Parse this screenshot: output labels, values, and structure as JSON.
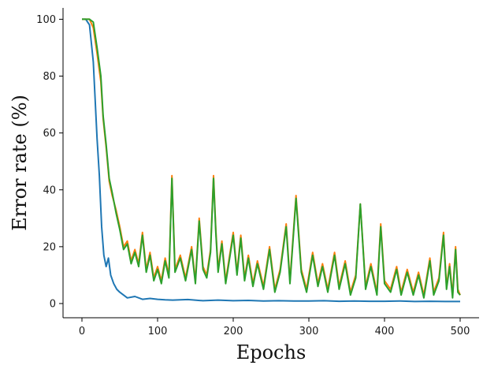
{
  "chart_data": {
    "type": "line",
    "title": "",
    "xlabel": "Epochs",
    "ylabel": "Error rate (%)",
    "xlim": [
      -25,
      525
    ],
    "ylim": [
      -5,
      104
    ],
    "xticks": [
      0,
      100,
      200,
      300,
      400,
      500
    ],
    "yticks": [
      0,
      20,
      40,
      60,
      80,
      100
    ],
    "grid": false,
    "legend": "none",
    "series": [
      {
        "color": "#1f77b4",
        "x": [
          0,
          5,
          10,
          15,
          20,
          23,
          26,
          29,
          32,
          35,
          38,
          42,
          46,
          50,
          55,
          60,
          70,
          80,
          90,
          100,
          110,
          120,
          140,
          160,
          180,
          200,
          220,
          240,
          260,
          280,
          300,
          320,
          340,
          360,
          380,
          400,
          420,
          440,
          460,
          480,
          500
        ],
        "y": [
          100,
          100,
          98,
          85,
          58,
          45,
          27,
          17,
          13,
          16,
          10,
          7,
          5,
          4,
          3,
          2,
          2.5,
          1.5,
          1.8,
          1.5,
          1.3,
          1.2,
          1.4,
          1.0,
          1.2,
          1.0,
          1.1,
          0.9,
          1.0,
          0.9,
          0.9,
          1.0,
          0.8,
          0.9,
          0.8,
          0.8,
          0.9,
          0.7,
          0.8,
          0.7,
          0.7
        ]
      },
      {
        "color": "#ff7f0e",
        "x": [
          0,
          10,
          15,
          20,
          25,
          28,
          32,
          36,
          40,
          45,
          50,
          55,
          60,
          65,
          70,
          75,
          80,
          85,
          90,
          95,
          100,
          105,
          110,
          115,
          119,
          123,
          130,
          137,
          145,
          150,
          155,
          160,
          165,
          170,
          174,
          177,
          180,
          185,
          190,
          200,
          205,
          210,
          215,
          220,
          226,
          232,
          240,
          248,
          255,
          262,
          270,
          275,
          283,
          290,
          297,
          305,
          312,
          318,
          325,
          334,
          340,
          348,
          355,
          362,
          368,
          375,
          382,
          390,
          395,
          400,
          408,
          416,
          422,
          430,
          438,
          445,
          452,
          460,
          465,
          472,
          478,
          482,
          486,
          490,
          494,
          497,
          500
        ],
        "y": [
          100,
          100,
          97,
          88,
          78,
          65,
          55,
          43,
          38,
          33,
          27,
          20,
          22,
          15,
          19,
          14,
          25,
          12,
          18,
          9,
          13,
          8,
          16,
          10,
          45,
          12,
          17,
          9,
          20,
          8,
          30,
          13,
          10,
          19,
          45,
          26,
          12,
          22,
          8,
          25,
          11,
          24,
          9,
          17,
          7,
          15,
          6,
          20,
          5,
          12,
          28,
          8,
          38,
          12,
          5,
          18,
          7,
          14,
          5,
          18,
          6,
          15,
          4,
          10,
          35,
          6,
          14,
          4,
          28,
          8,
          5,
          13,
          4,
          12,
          4,
          11,
          3,
          16,
          4,
          9,
          25,
          6,
          14,
          3,
          20,
          5,
          3
        ]
      },
      {
        "color": "#2ca02c",
        "x": [
          0,
          10,
          15,
          20,
          25,
          28,
          32,
          36,
          40,
          45,
          50,
          55,
          60,
          65,
          70,
          75,
          80,
          85,
          90,
          95,
          100,
          105,
          110,
          115,
          119,
          123,
          130,
          137,
          145,
          150,
          155,
          160,
          165,
          170,
          174,
          177,
          180,
          185,
          190,
          200,
          205,
          210,
          215,
          220,
          226,
          232,
          240,
          248,
          255,
          262,
          270,
          275,
          283,
          290,
          297,
          305,
          312,
          318,
          325,
          334,
          340,
          348,
          355,
          362,
          368,
          375,
          382,
          390,
          395,
          400,
          408,
          416,
          422,
          430,
          438,
          445,
          452,
          460,
          465,
          472,
          478,
          482,
          486,
          490,
          494,
          497,
          500
        ],
        "y": [
          100,
          100,
          99,
          90,
          80,
          66,
          56,
          44,
          39,
          32,
          26,
          19,
          21,
          14,
          18,
          13,
          24,
          11,
          17,
          8,
          12,
          7,
          15,
          9,
          44,
          11,
          16,
          8,
          19,
          7,
          29,
          12,
          9,
          18,
          44,
          25,
          11,
          21,
          7,
          24,
          10,
          23,
          8,
          16,
          6,
          14,
          5,
          19,
          4,
          11,
          27,
          7,
          37,
          11,
          4,
          17,
          6,
          13,
          4,
          17,
          5,
          14,
          3,
          9,
          35,
          5,
          13,
          3,
          27,
          7,
          4,
          12,
          3,
          11,
          3,
          10,
          2,
          15,
          3,
          8,
          24,
          5,
          13,
          2,
          19,
          4,
          3
        ]
      }
    ]
  }
}
